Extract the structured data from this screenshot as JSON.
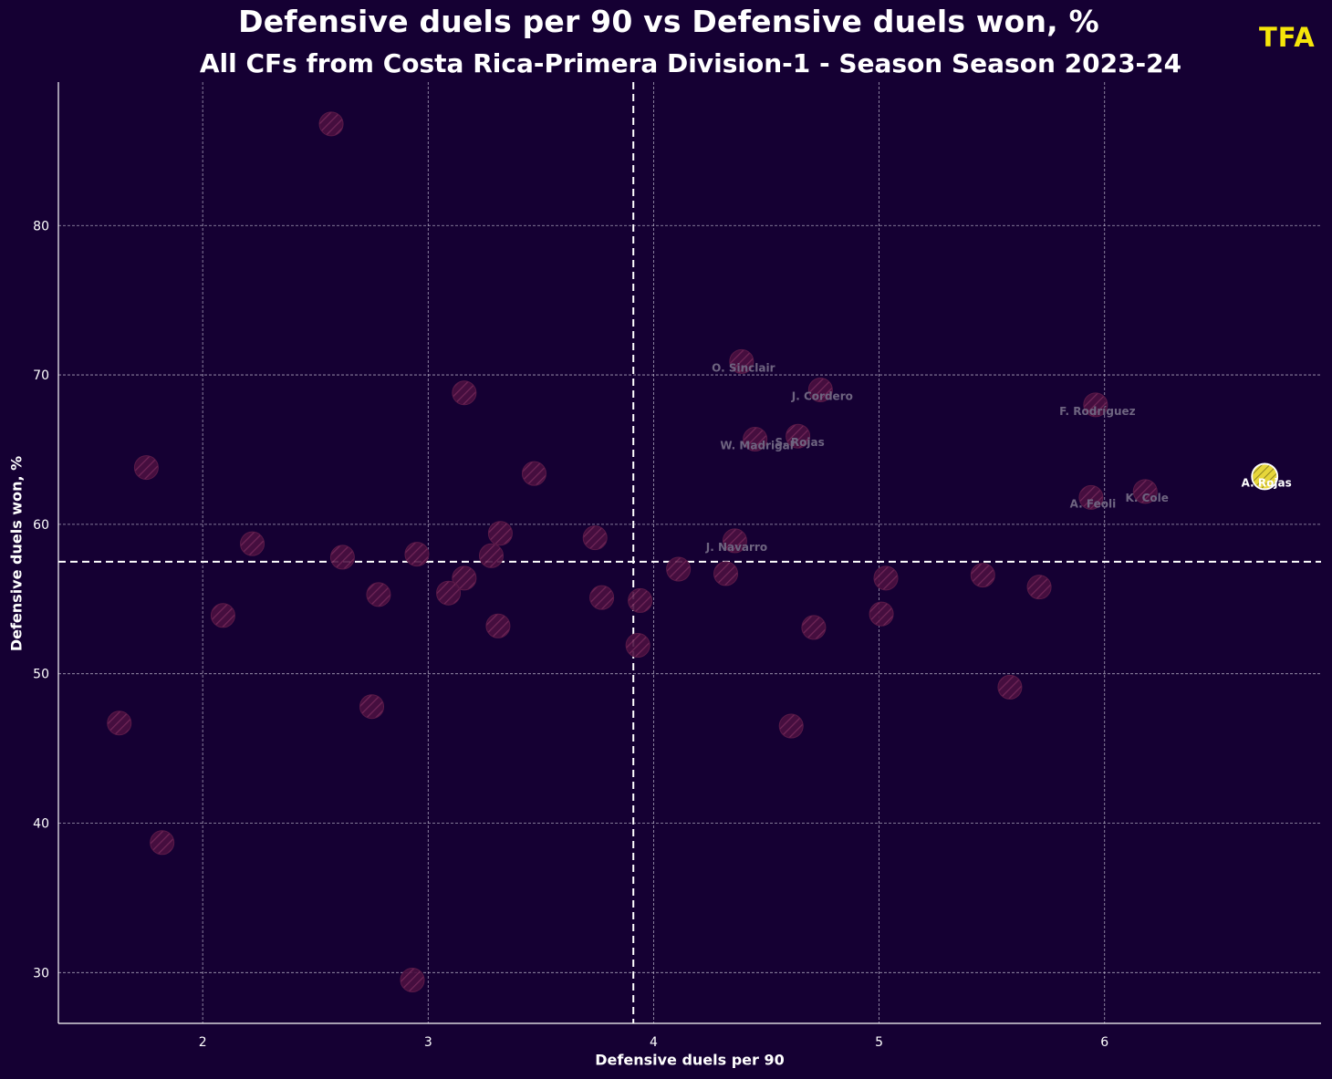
{
  "header": {
    "title": "Defensive duels per 90 vs Defensive duels won, %",
    "subtitle": "All CFs from Costa Rica-Primera Division-1 - Season Season 2023-24",
    "logo": "TFA"
  },
  "colors": {
    "background": "#150033",
    "dot": "#4a1040",
    "dot_hatch": "#7a2a5c",
    "highlight": "#e7d63a",
    "grid": "#c9c4d6",
    "median_line": "#ffffff",
    "logo": "#f5e50a"
  },
  "chart_data": {
    "type": "scatter",
    "title": "Defensive duels per 90 vs Defensive duels won, %",
    "subtitle": "All CFs from Costa Rica-Primera Division-1 - Season Season 2023-24",
    "xlabel": "Defensive duels per 90",
    "ylabel": "Defensive duels won, %",
    "xlim": [
      1.36,
      6.96
    ],
    "ylim": [
      26.6,
      89.6
    ],
    "xticks": [
      "2",
      "3",
      "4",
      "5",
      "6"
    ],
    "xtick_values": [
      2,
      3,
      4,
      5,
      6
    ],
    "yticks": [
      "30",
      "40",
      "50",
      "60",
      "70",
      "80"
    ],
    "ytick_values": [
      30,
      40,
      50,
      60,
      70,
      80
    ],
    "grid": true,
    "median_x": 3.91,
    "median_y": 57.5,
    "points": [
      {
        "x": 6.71,
        "y": 63.2,
        "label": "A. Rojas",
        "highlight": true
      },
      {
        "x": 6.18,
        "y": 62.2,
        "label": "K. Cole"
      },
      {
        "x": 5.94,
        "y": 61.8,
        "label": "A. Feoli"
      },
      {
        "x": 5.96,
        "y": 68.0,
        "label": "F. Rodríguez"
      },
      {
        "x": 4.39,
        "y": 70.9,
        "label": "O. Sinclair"
      },
      {
        "x": 4.74,
        "y": 69.0,
        "label": "J. Cordero"
      },
      {
        "x": 4.45,
        "y": 65.7,
        "label": "W. Madrigal"
      },
      {
        "x": 4.64,
        "y": 65.9,
        "label": "S. Rojas"
      },
      {
        "x": 4.36,
        "y": 58.9,
        "label": "J. Navarro"
      },
      {
        "x": 2.57,
        "y": 86.8,
        "label": ""
      },
      {
        "x": 1.75,
        "y": 63.8,
        "label": ""
      },
      {
        "x": 3.16,
        "y": 68.8,
        "label": ""
      },
      {
        "x": 3.47,
        "y": 63.4,
        "label": ""
      },
      {
        "x": 2.22,
        "y": 58.7,
        "label": ""
      },
      {
        "x": 2.62,
        "y": 57.8,
        "label": ""
      },
      {
        "x": 2.95,
        "y": 58.0,
        "label": ""
      },
      {
        "x": 3.32,
        "y": 59.4,
        "label": ""
      },
      {
        "x": 3.28,
        "y": 57.9,
        "label": ""
      },
      {
        "x": 3.16,
        "y": 56.4,
        "label": ""
      },
      {
        "x": 3.09,
        "y": 55.4,
        "label": ""
      },
      {
        "x": 3.74,
        "y": 59.1,
        "label": ""
      },
      {
        "x": 3.77,
        "y": 55.1,
        "label": ""
      },
      {
        "x": 3.31,
        "y": 53.2,
        "label": ""
      },
      {
        "x": 2.78,
        "y": 55.3,
        "label": ""
      },
      {
        "x": 2.09,
        "y": 53.9,
        "label": ""
      },
      {
        "x": 2.75,
        "y": 47.8,
        "label": ""
      },
      {
        "x": 1.63,
        "y": 46.7,
        "label": ""
      },
      {
        "x": 1.82,
        "y": 38.7,
        "label": ""
      },
      {
        "x": 2.93,
        "y": 29.5,
        "label": ""
      },
      {
        "x": 3.94,
        "y": 54.9,
        "label": ""
      },
      {
        "x": 3.93,
        "y": 51.9,
        "label": ""
      },
      {
        "x": 4.11,
        "y": 57.0,
        "label": ""
      },
      {
        "x": 4.32,
        "y": 56.7,
        "label": ""
      },
      {
        "x": 4.71,
        "y": 53.1,
        "label": ""
      },
      {
        "x": 4.61,
        "y": 46.5,
        "label": ""
      },
      {
        "x": 5.01,
        "y": 54.0,
        "label": ""
      },
      {
        "x": 5.03,
        "y": 56.4,
        "label": ""
      },
      {
        "x": 5.46,
        "y": 56.6,
        "label": ""
      },
      {
        "x": 5.71,
        "y": 55.8,
        "label": ""
      },
      {
        "x": 5.58,
        "y": 49.1,
        "label": ""
      }
    ]
  }
}
